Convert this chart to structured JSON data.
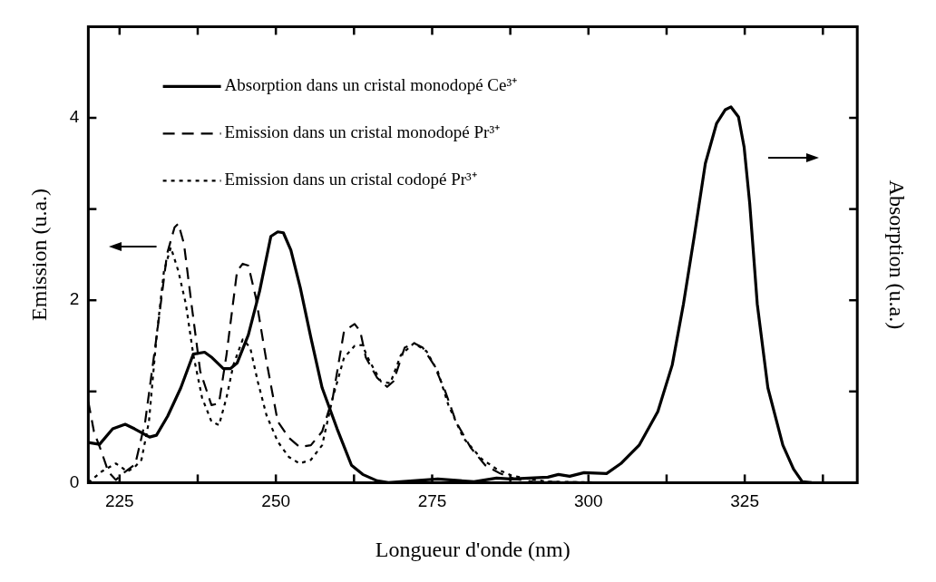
{
  "chart_data": {
    "type": "line",
    "xlabel": "Longueur d'onde (nm)",
    "ylabel": "Emission (u.a.)",
    "y2label": "Absorption (u.a.)",
    "xlim": [
      220,
      343
    ],
    "xticks": [
      225,
      {
        "value": 237.5,
        "label": null
      },
      250,
      {
        "value": 262.5,
        "label": null
      },
      275,
      {
        "value": 287.5,
        "label": null
      },
      300,
      {
        "value": 312.5,
        "label": null
      },
      325,
      {
        "value": 337.5,
        "label": null
      }
    ],
    "ylim": [
      0,
      5
    ],
    "yticks": [
      0,
      {
        "value": 1,
        "label": null
      },
      2,
      {
        "value": 3,
        "label": null
      },
      4
    ],
    "legend": "top left",
    "grid": false,
    "marker": "none",
    "series": [
      {
        "name": "Absorption dans un cristal monodopé Ce³⁺",
        "color": "#000000",
        "line_style": "solid",
        "x": [
          220,
          221.8,
          223.9,
          225.9,
          227.4,
          229.8,
          230.9,
          232.7,
          234.8,
          236.8,
          238.6,
          239.8,
          241.6,
          242.7,
          243.8,
          245.6,
          247.4,
          249.2,
          250.3,
          251.2,
          252.4,
          253.9,
          255.6,
          257.4,
          259.8,
          262.1,
          263.9,
          266.2,
          268,
          270,
          275.9,
          281.7,
          285.3,
          287.6,
          293.5,
          295.2,
          297,
          299.3,
          302.9,
          305.2,
          308.1,
          311.1,
          313.4,
          315.2,
          316.9,
          318.7,
          320.5,
          321.9,
          322.8,
          324,
          324.9,
          325.8,
          327,
          328.7,
          331.1,
          332.8,
          334.2,
          335.7
        ],
        "values": [
          0.44,
          0.42,
          0.59,
          0.64,
          0.59,
          0.5,
          0.52,
          0.73,
          1.04,
          1.41,
          1.43,
          1.37,
          1.25,
          1.25,
          1.31,
          1.62,
          2.1,
          2.7,
          2.75,
          2.74,
          2.55,
          2.14,
          1.59,
          1.04,
          0.59,
          0.19,
          0.09,
          0.02,
          0,
          0.01,
          0.04,
          0.01,
          0.05,
          0.04,
          0.06,
          0.09,
          0.07,
          0.11,
          0.1,
          0.21,
          0.41,
          0.78,
          1.29,
          1.96,
          2.69,
          3.5,
          3.94,
          4.09,
          4.12,
          4.01,
          3.68,
          3.06,
          1.96,
          1.04,
          0.41,
          0.15,
          0.01,
          0
        ]
      },
      {
        "name": "Emission dans un cristal monodopé Pr³⁺",
        "color": "#000000",
        "line_style": "dashed",
        "x": [
          220,
          220.9,
          222.1,
          223.2,
          224.4,
          225.9,
          227.5,
          229.1,
          230.9,
          232.6,
          233.8,
          234.4,
          235.3,
          236.5,
          237.9,
          239.7,
          240.9,
          242.1,
          243.8,
          244.7,
          245.6,
          246.8,
          248.5,
          250.3,
          252.1,
          253.8,
          255.6,
          257.4,
          259.1,
          260.9,
          262.6,
          263.5,
          264.4,
          266.2,
          267.8,
          268.8,
          270.6,
          272.1,
          273.5,
          275.3,
          277.1,
          278.8,
          281.2,
          283.5,
          285.9,
          288.2,
          291.1,
          305.2
        ],
        "values": [
          0.89,
          0.56,
          0.34,
          0.12,
          0.03,
          0.12,
          0.2,
          0.67,
          1.59,
          2.51,
          2.8,
          2.84,
          2.62,
          1.96,
          1.22,
          0.85,
          0.87,
          1.4,
          2.32,
          2.4,
          2.38,
          2.03,
          1.33,
          0.67,
          0.49,
          0.39,
          0.41,
          0.56,
          0.93,
          1.66,
          1.74,
          1.66,
          1.37,
          1.15,
          1.05,
          1.11,
          1.48,
          1.53,
          1.48,
          1.29,
          1,
          0.67,
          0.38,
          0.19,
          0.1,
          0.04,
          0.01,
          0
        ]
      },
      {
        "name": "Emission dans un cristal codopé Pr³⁺",
        "color": "#000000",
        "line_style": "dotted",
        "x": [
          220,
          222.1,
          224.4,
          225.3,
          226.2,
          227.4,
          228.5,
          229.7,
          230.9,
          232.1,
          233.2,
          234.4,
          235.6,
          236.8,
          238.2,
          239.7,
          240.9,
          242.1,
          243.2,
          244.7,
          245.9,
          247.1,
          248.5,
          250.3,
          252.1,
          253.8,
          255.6,
          257.4,
          259.1,
          260.9,
          262.6,
          263.8,
          265,
          266.8,
          268.3,
          270,
          272.1,
          274.1,
          275.9,
          277.6,
          280,
          282.9,
          285.3,
          287.6,
          290.5,
          293.5,
          305
        ],
        "values": [
          0,
          0.12,
          0.21,
          0.17,
          0.12,
          0.17,
          0.25,
          0.67,
          1.59,
          2.32,
          2.58,
          2.32,
          1.96,
          1.4,
          0.93,
          0.67,
          0.63,
          0.93,
          1.29,
          1.57,
          1.48,
          1.11,
          0.74,
          0.45,
          0.28,
          0.21,
          0.25,
          0.41,
          0.93,
          1.37,
          1.5,
          1.51,
          1.33,
          1.11,
          1.09,
          1.4,
          1.53,
          1.44,
          1.22,
          0.85,
          0.49,
          0.26,
          0.15,
          0.08,
          0.04,
          0.01,
          0
        ]
      }
    ]
  }
}
